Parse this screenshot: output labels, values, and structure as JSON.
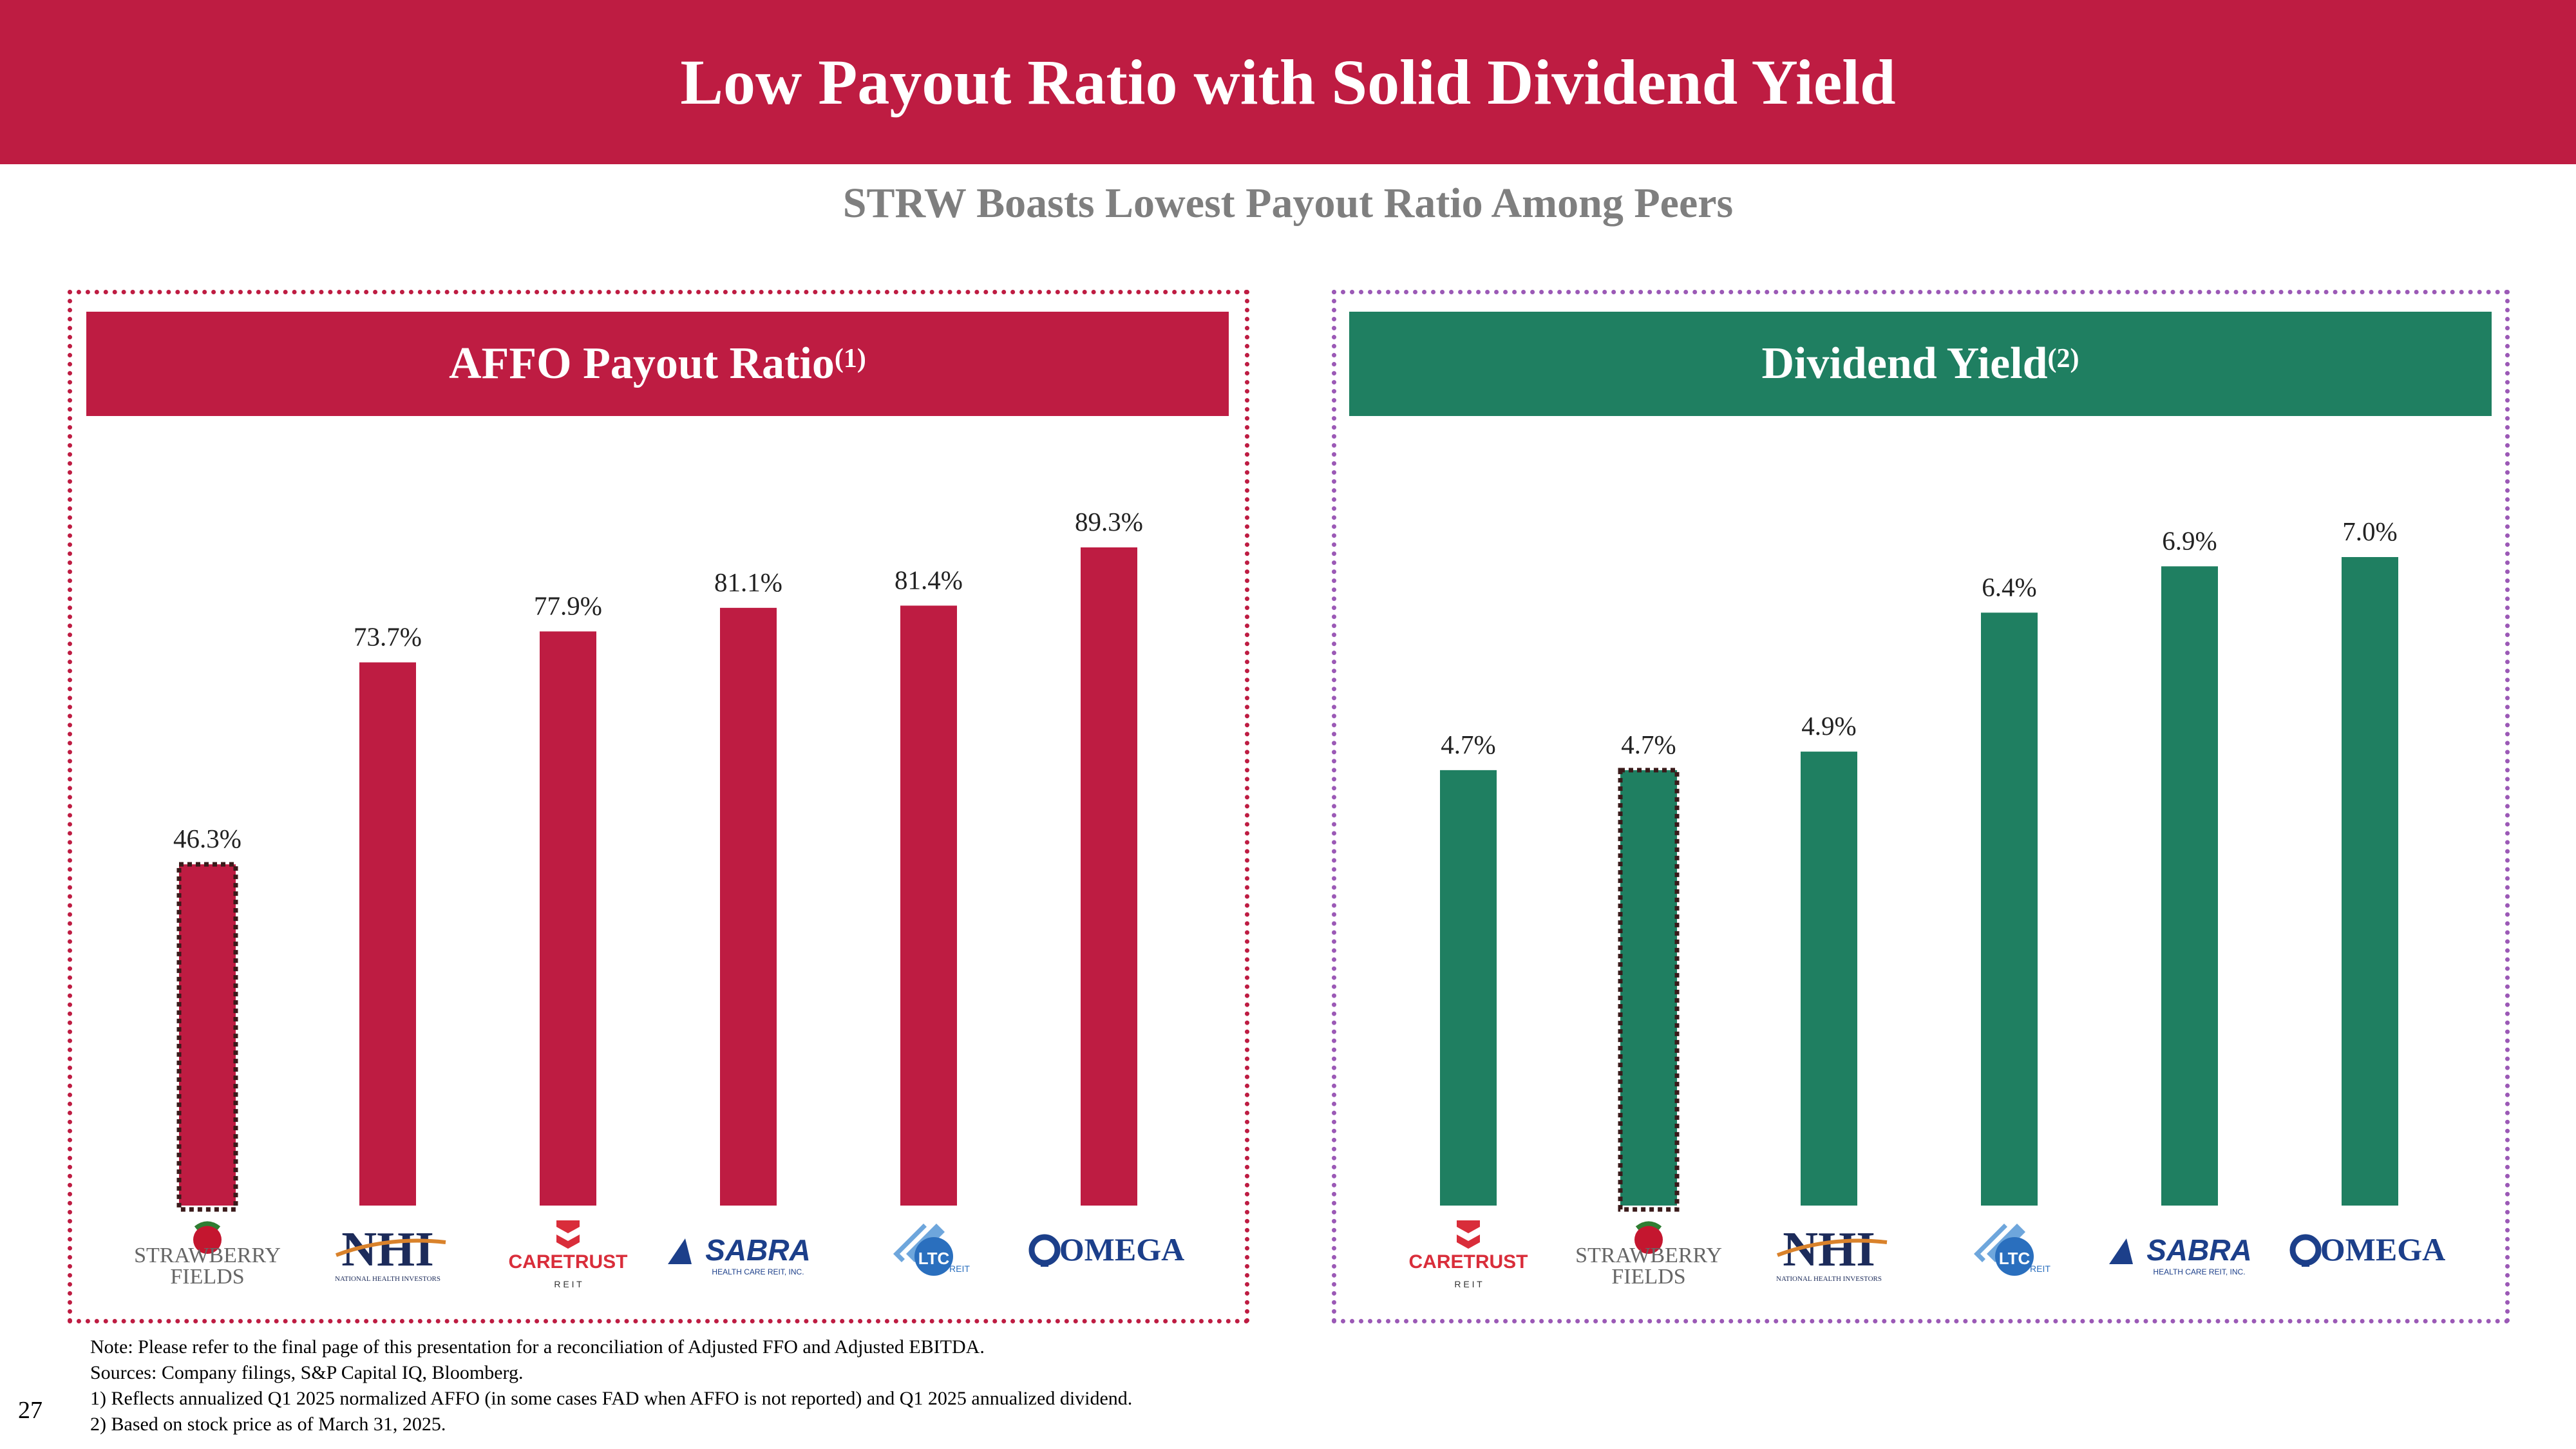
{
  "title": "Low Payout Ratio with Solid Dividend Yield",
  "subtitle": "STRW Boasts Lowest Payout Ratio Among Peers",
  "colors": {
    "brand_red": "#be1c42",
    "brand_green": "#1f7f61",
    "highlight_outline": "#3a1a1a",
    "right_border": "#9b59b6"
  },
  "left_panel": {
    "title": "AFFO Payout Ratio",
    "sup": "(1)"
  },
  "right_panel": {
    "title": "Dividend Yield",
    "sup": "(2)"
  },
  "chart_data": [
    {
      "type": "bar",
      "title": "AFFO Payout Ratio",
      "categories": [
        "STRAWBERRY FIELDS",
        "NHI",
        "CARETRUST",
        "SABRA",
        "LTC",
        "OMEGA"
      ],
      "values": [
        46.3,
        73.7,
        77.9,
        81.1,
        81.4,
        89.3
      ],
      "labels": [
        "46.3%",
        "73.7%",
        "77.9%",
        "81.1%",
        "81.4%",
        "89.3%"
      ],
      "highlight_index": 0,
      "ylim": [
        0,
        100
      ],
      "color": "#be1c42"
    },
    {
      "type": "bar",
      "title": "Dividend Yield",
      "categories": [
        "CARETRUST",
        "STRAWBERRY FIELDS",
        "NHI",
        "LTC",
        "SABRA",
        "OMEGA"
      ],
      "values": [
        4.7,
        4.7,
        4.9,
        6.4,
        6.9,
        7.0
      ],
      "labels": [
        "4.7%",
        "4.7%",
        "4.9%",
        "6.4%",
        "6.9%",
        "7.0%"
      ],
      "highlight_index": 1,
      "ylim": [
        0,
        8.0
      ],
      "color": "#1f7f61"
    }
  ],
  "logos": {
    "STRAWBERRY FIELDS": {
      "line1": "STRAWBERRY",
      "line2": "FIELDS",
      "icon": "strawberry-icon"
    },
    "NHI": {
      "line1": "NHI",
      "line2": "NATIONAL HEALTH INVESTORS",
      "icon": "nhi-logo"
    },
    "CARETRUST": {
      "line1": "CARETRUST",
      "line2": "R E I T",
      "icon": "caretrust-chevron-icon"
    },
    "SABRA": {
      "line1": "SABRA",
      "line2": "HEALTH CARE REIT, INC.",
      "icon": "sabra-triangle-icon"
    },
    "LTC": {
      "line1": "LTC",
      "line2": "REIT",
      "icon": "ltc-diamond-icon"
    },
    "OMEGA": {
      "line1": "OMEGA",
      "line2": "",
      "icon": "omega-icon"
    }
  },
  "notes": [
    "Note: Please refer to the final page of this presentation for a reconciliation of Adjusted FFO and Adjusted EBITDA.",
    "Sources: Company filings, S&P Capital IQ, Bloomberg.",
    "1) Reflects annualized Q1 2025 normalized AFFO (in some cases FAD when AFFO is not reported) and Q1 2025 annualized dividend.",
    "2) Based on stock price as of March 31, 2025."
  ],
  "page_number": "27"
}
